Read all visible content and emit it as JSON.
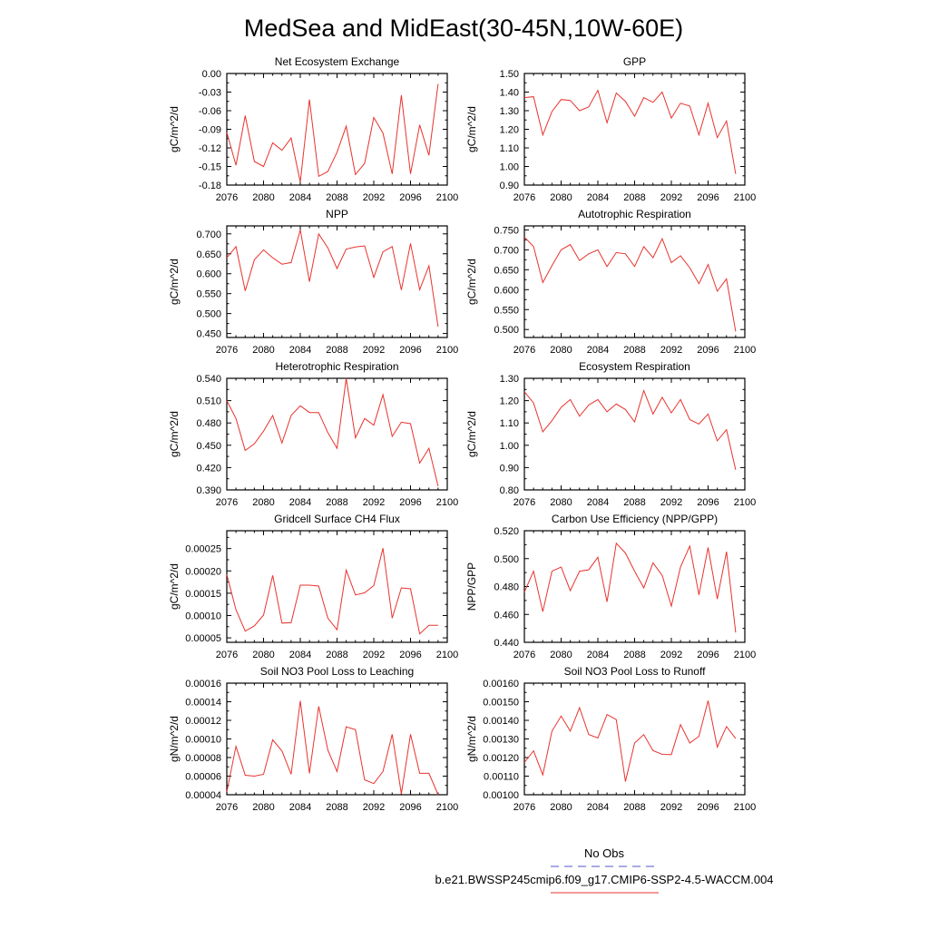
{
  "figure": {
    "title": "MedSea and MidEast(30-45N,10W-60E)",
    "legend": {
      "obs_label": "No Obs",
      "obs_color": "#5555cc",
      "model_label": "b.e21.BWSSP245cmip6.f09_g17.CMIP6-SSP2-4.5-WACCM.004",
      "model_color": "#e8332e"
    },
    "line_color": "#e8332e"
  },
  "chart_data": [
    {
      "type": "line",
      "title": "Net Ecosystem Exchange",
      "ylabel": "gC/m^2/d",
      "xlim": [
        2076,
        2100
      ],
      "xticks": [
        2076,
        2080,
        2084,
        2088,
        2092,
        2096,
        2100
      ],
      "ylim": [
        -0.18,
        0.0
      ],
      "yticks": [
        {
          "v": 0.0,
          "label": "0.00"
        },
        {
          "v": -0.03,
          "label": "-0.03"
        },
        {
          "v": -0.06,
          "label": "-0.06"
        },
        {
          "v": -0.09,
          "label": "-0.09"
        },
        {
          "v": -0.12,
          "label": "-0.12"
        },
        {
          "v": -0.15,
          "label": "-0.15"
        },
        {
          "v": -0.18,
          "label": "-0.18"
        }
      ],
      "x": [
        2076,
        2077,
        2078,
        2079,
        2080,
        2081,
        2082,
        2083,
        2084,
        2085,
        2086,
        2087,
        2088,
        2089,
        2090,
        2091,
        2092,
        2093,
        2094,
        2095,
        2096,
        2097,
        2098,
        2099
      ],
      "y": [
        -0.095,
        -0.148,
        -0.068,
        -0.142,
        -0.15,
        -0.112,
        -0.124,
        -0.104,
        -0.175,
        -0.042,
        -0.166,
        -0.158,
        -0.127,
        -0.085,
        -0.163,
        -0.145,
        -0.071,
        -0.096,
        -0.162,
        -0.035,
        -0.162,
        -0.083,
        -0.132,
        -0.017
      ]
    },
    {
      "type": "line",
      "title": "GPP",
      "ylabel": "gC/m^2/d",
      "xlim": [
        2076,
        2100
      ],
      "xticks": [
        2076,
        2080,
        2084,
        2088,
        2092,
        2096,
        2100
      ],
      "ylim": [
        0.9,
        1.5
      ],
      "yticks": [
        {
          "v": 1.5,
          "label": "1.50"
        },
        {
          "v": 1.4,
          "label": "1.40"
        },
        {
          "v": 1.3,
          "label": "1.30"
        },
        {
          "v": 1.2,
          "label": "1.20"
        },
        {
          "v": 1.1,
          "label": "1.10"
        },
        {
          "v": 1.0,
          "label": "1.00"
        },
        {
          "v": 0.9,
          "label": "0.90"
        }
      ],
      "x": [
        2076,
        2077,
        2078,
        2079,
        2080,
        2081,
        2082,
        2083,
        2084,
        2085,
        2086,
        2087,
        2088,
        2089,
        2090,
        2091,
        2092,
        2093,
        2094,
        2095,
        2096,
        2097,
        2098,
        2099
      ],
      "y": [
        1.37,
        1.375,
        1.17,
        1.295,
        1.36,
        1.355,
        1.3,
        1.32,
        1.41,
        1.235,
        1.395,
        1.35,
        1.27,
        1.37,
        1.345,
        1.4,
        1.26,
        1.34,
        1.325,
        1.17,
        1.34,
        1.155,
        1.245,
        0.96
      ]
    },
    {
      "type": "line",
      "title": "NPP",
      "ylabel": "gC/m^2/d",
      "xlim": [
        2076,
        2100
      ],
      "xticks": [
        2076,
        2080,
        2084,
        2088,
        2092,
        2096,
        2100
      ],
      "ylim": [
        0.44,
        0.72
      ],
      "yticks": [
        {
          "v": 0.7,
          "label": "0.700"
        },
        {
          "v": 0.65,
          "label": "0.650"
        },
        {
          "v": 0.6,
          "label": "0.600"
        },
        {
          "v": 0.55,
          "label": "0.550"
        },
        {
          "v": 0.5,
          "label": "0.500"
        },
        {
          "v": 0.45,
          "label": "0.450"
        }
      ],
      "x": [
        2076,
        2077,
        2078,
        2079,
        2080,
        2081,
        2082,
        2083,
        2084,
        2085,
        2086,
        2087,
        2088,
        2089,
        2090,
        2091,
        2092,
        2093,
        2094,
        2095,
        2096,
        2097,
        2098,
        2099
      ],
      "y": [
        0.64,
        0.668,
        0.557,
        0.635,
        0.66,
        0.64,
        0.624,
        0.628,
        0.71,
        0.58,
        0.7,
        0.665,
        0.613,
        0.662,
        0.667,
        0.67,
        0.591,
        0.655,
        0.668,
        0.559,
        0.676,
        0.56,
        0.62,
        0.467
      ]
    },
    {
      "type": "line",
      "title": "Autotrophic Respiration",
      "ylabel": "gC/m^2/d",
      "xlim": [
        2076,
        2100
      ],
      "xticks": [
        2076,
        2080,
        2084,
        2088,
        2092,
        2096,
        2100
      ],
      "ylim": [
        0.48,
        0.76
      ],
      "yticks": [
        {
          "v": 0.75,
          "label": "0.750"
        },
        {
          "v": 0.7,
          "label": "0.700"
        },
        {
          "v": 0.65,
          "label": "0.650"
        },
        {
          "v": 0.6,
          "label": "0.600"
        },
        {
          "v": 0.55,
          "label": "0.550"
        },
        {
          "v": 0.5,
          "label": "0.500"
        }
      ],
      "x": [
        2076,
        2077,
        2078,
        2079,
        2080,
        2081,
        2082,
        2083,
        2084,
        2085,
        2086,
        2087,
        2088,
        2089,
        2090,
        2091,
        2092,
        2093,
        2094,
        2095,
        2096,
        2097,
        2098,
        2099
      ],
      "y": [
        0.732,
        0.708,
        0.618,
        0.66,
        0.7,
        0.713,
        0.673,
        0.69,
        0.7,
        0.658,
        0.693,
        0.69,
        0.658,
        0.708,
        0.68,
        0.728,
        0.668,
        0.685,
        0.655,
        0.615,
        0.663,
        0.596,
        0.627,
        0.495
      ]
    },
    {
      "type": "line",
      "title": "Heterotrophic Respiration",
      "ylabel": "gC/m^2/d",
      "xlim": [
        2076,
        2100
      ],
      "xticks": [
        2076,
        2080,
        2084,
        2088,
        2092,
        2096,
        2100
      ],
      "ylim": [
        0.39,
        0.54
      ],
      "yticks": [
        {
          "v": 0.54,
          "label": "0.540"
        },
        {
          "v": 0.51,
          "label": "0.510"
        },
        {
          "v": 0.48,
          "label": "0.480"
        },
        {
          "v": 0.45,
          "label": "0.450"
        },
        {
          "v": 0.42,
          "label": "0.420"
        },
        {
          "v": 0.39,
          "label": "0.390"
        }
      ],
      "x": [
        2076,
        2077,
        2078,
        2079,
        2080,
        2081,
        2082,
        2083,
        2084,
        2085,
        2086,
        2087,
        2088,
        2089,
        2090,
        2091,
        2092,
        2093,
        2094,
        2095,
        2096,
        2097,
        2098,
        2099
      ],
      "y": [
        0.51,
        0.486,
        0.443,
        0.452,
        0.469,
        0.49,
        0.453,
        0.49,
        0.503,
        0.494,
        0.494,
        0.467,
        0.446,
        0.54,
        0.46,
        0.486,
        0.477,
        0.518,
        0.462,
        0.481,
        0.479,
        0.426,
        0.446,
        0.395
      ]
    },
    {
      "type": "line",
      "title": "Ecosystem Respiration",
      "ylabel": "gC/m^2/d",
      "xlim": [
        2076,
        2100
      ],
      "xticks": [
        2076,
        2080,
        2084,
        2088,
        2092,
        2096,
        2100
      ],
      "ylim": [
        0.8,
        1.3
      ],
      "yticks": [
        {
          "v": 1.3,
          "label": "1.30"
        },
        {
          "v": 1.2,
          "label": "1.20"
        },
        {
          "v": 1.1,
          "label": "1.10"
        },
        {
          "v": 1.0,
          "label": "1.00"
        },
        {
          "v": 0.9,
          "label": "0.90"
        },
        {
          "v": 0.8,
          "label": "0.80"
        }
      ],
      "x": [
        2076,
        2077,
        2078,
        2079,
        2080,
        2081,
        2082,
        2083,
        2084,
        2085,
        2086,
        2087,
        2088,
        2089,
        2090,
        2091,
        2092,
        2093,
        2094,
        2095,
        2096,
        2097,
        2098,
        2099
      ],
      "y": [
        1.24,
        1.19,
        1.06,
        1.11,
        1.17,
        1.205,
        1.13,
        1.18,
        1.205,
        1.15,
        1.185,
        1.16,
        1.105,
        1.245,
        1.14,
        1.215,
        1.145,
        1.205,
        1.115,
        1.095,
        1.14,
        1.02,
        1.07,
        0.89
      ]
    },
    {
      "type": "line",
      "title": "Gridcell Surface CH4 Flux",
      "ylabel": "gC/m^2/d",
      "xlim": [
        2076,
        2100
      ],
      "xticks": [
        2076,
        2080,
        2084,
        2088,
        2092,
        2096,
        2100
      ],
      "ylim": [
        4e-05,
        0.00029
      ],
      "yticks": [
        {
          "v": 0.00025,
          "label": "0.00025"
        },
        {
          "v": 0.0002,
          "label": "0.00020"
        },
        {
          "v": 0.00015,
          "label": "0.00015"
        },
        {
          "v": 0.0001,
          "label": "0.00010"
        },
        {
          "v": 5e-05,
          "label": "0.00005"
        }
      ],
      "x": [
        2076,
        2077,
        2078,
        2079,
        2080,
        2081,
        2082,
        2083,
        2084,
        2085,
        2086,
        2087,
        2088,
        2089,
        2090,
        2091,
        2092,
        2093,
        2094,
        2095,
        2096,
        2097,
        2098,
        2099
      ],
      "y": [
        0.000192,
        0.000113,
        6.5e-05,
        7.7e-05,
        0.000101,
        0.00019,
        8.3e-05,
        8.4e-05,
        0.000168,
        0.000168,
        0.000166,
        9.4e-05,
        6.8e-05,
        0.000202,
        0.000146,
        0.000151,
        0.000167,
        0.000251,
        9.4e-05,
        0.000162,
        0.00016,
        5.9e-05,
        7.8e-05,
        7.8e-05
      ]
    },
    {
      "type": "line",
      "title": "Carbon Use Efficiency (NPP/GPP)",
      "ylabel": "NPP/GPP",
      "xlim": [
        2076,
        2100
      ],
      "xticks": [
        2076,
        2080,
        2084,
        2088,
        2092,
        2096,
        2100
      ],
      "ylim": [
        0.44,
        0.52
      ],
      "yticks": [
        {
          "v": 0.52,
          "label": "0.520"
        },
        {
          "v": 0.5,
          "label": "0.500"
        },
        {
          "v": 0.48,
          "label": "0.480"
        },
        {
          "v": 0.46,
          "label": "0.460"
        },
        {
          "v": 0.44,
          "label": "0.440"
        }
      ],
      "x": [
        2076,
        2077,
        2078,
        2079,
        2080,
        2081,
        2082,
        2083,
        2084,
        2085,
        2086,
        2087,
        2088,
        2089,
        2090,
        2091,
        2092,
        2093,
        2094,
        2095,
        2096,
        2097,
        2098,
        2099
      ],
      "y": [
        0.476,
        0.491,
        0.462,
        0.491,
        0.494,
        0.477,
        0.491,
        0.492,
        0.501,
        0.469,
        0.511,
        0.504,
        0.491,
        0.479,
        0.497,
        0.488,
        0.466,
        0.494,
        0.509,
        0.474,
        0.508,
        0.471,
        0.505,
        0.447
      ]
    },
    {
      "type": "line",
      "title": "Soil NO3 Pool Loss to Leaching",
      "ylabel": "gN/m^2/d",
      "xlim": [
        2076,
        2100
      ],
      "xticks": [
        2076,
        2080,
        2084,
        2088,
        2092,
        2096,
        2100
      ],
      "ylim": [
        4e-05,
        0.00016
      ],
      "yticks": [
        {
          "v": 0.00016,
          "label": "0.00016"
        },
        {
          "v": 0.00014,
          "label": "0.00014"
        },
        {
          "v": 0.00012,
          "label": "0.00012"
        },
        {
          "v": 0.0001,
          "label": "0.00010"
        },
        {
          "v": 8e-05,
          "label": "0.00008"
        },
        {
          "v": 6e-05,
          "label": "0.00006"
        },
        {
          "v": 4e-05,
          "label": "0.00004"
        }
      ],
      "x": [
        2076,
        2077,
        2078,
        2079,
        2080,
        2081,
        2082,
        2083,
        2084,
        2085,
        2086,
        2087,
        2088,
        2089,
        2090,
        2091,
        2092,
        2093,
        2094,
        2095,
        2096,
        2097,
        2098,
        2099
      ],
      "y": [
        4.3e-05,
        9.2e-05,
        6.1e-05,
        6e-05,
        6.2e-05,
        9.9e-05,
        8.7e-05,
        6.2e-05,
        0.000141,
        6.3e-05,
        0.000135,
        8.8e-05,
        6.5e-05,
        0.000113,
        0.00011,
        5.6e-05,
        5.2e-05,
        6.5e-05,
        0.000105,
        4.1e-05,
        0.000105,
        6.3e-05,
        6.3e-05,
        4e-05
      ]
    },
    {
      "type": "line",
      "title": "Soil NO3 Pool Loss to Runoff",
      "ylabel": "gN/m^2/d",
      "xlim": [
        2076,
        2100
      ],
      "xticks": [
        2076,
        2080,
        2084,
        2088,
        2092,
        2096,
        2100
      ],
      "ylim": [
        0.001,
        0.0016
      ],
      "yticks": [
        {
          "v": 0.0016,
          "label": "0.00160"
        },
        {
          "v": 0.0015,
          "label": "0.00150"
        },
        {
          "v": 0.0014,
          "label": "0.00140"
        },
        {
          "v": 0.0013,
          "label": "0.00130"
        },
        {
          "v": 0.0012,
          "label": "0.00120"
        },
        {
          "v": 0.0011,
          "label": "0.00110"
        },
        {
          "v": 0.001,
          "label": "0.00100"
        }
      ],
      "x": [
        2076,
        2077,
        2078,
        2079,
        2080,
        2081,
        2082,
        2083,
        2084,
        2085,
        2086,
        2087,
        2088,
        2089,
        2090,
        2091,
        2092,
        2093,
        2094,
        2095,
        2096,
        2097,
        2098,
        2099
      ],
      "y": [
        0.001173,
        0.001236,
        0.001107,
        0.001342,
        0.001423,
        0.001342,
        0.001468,
        0.001324,
        0.001305,
        0.001431,
        0.001404,
        0.001071,
        0.001278,
        0.001323,
        0.001237,
        0.001217,
        0.001216,
        0.001377,
        0.001278,
        0.001314,
        0.001506,
        0.001256,
        0.001367,
        0.001302
      ]
    }
  ]
}
